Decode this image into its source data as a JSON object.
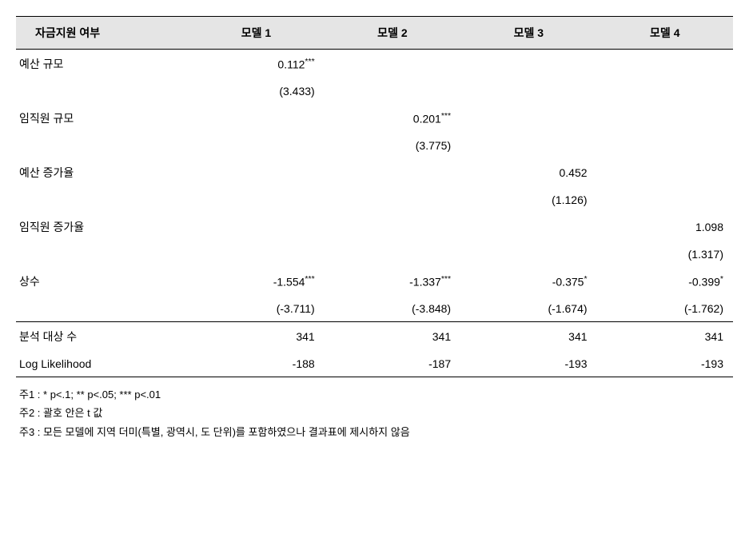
{
  "table": {
    "headers": [
      "자금지원 여부",
      "모델 1",
      "모델 2",
      "모델 3",
      "모델 4"
    ],
    "rows": [
      {
        "label": "예산 규모",
        "cells": [
          "0.112***",
          "",
          "",
          ""
        ]
      },
      {
        "label": "",
        "cells": [
          "(3.433)",
          "",
          "",
          ""
        ]
      },
      {
        "label": "임직원 규모",
        "cells": [
          "",
          "0.201***",
          "",
          ""
        ]
      },
      {
        "label": "",
        "cells": [
          "",
          "(3.775)",
          "",
          ""
        ]
      },
      {
        "label": "예산 증가율",
        "cells": [
          "",
          "",
          "0.452",
          ""
        ]
      },
      {
        "label": "",
        "cells": [
          "",
          "",
          "(1.126)",
          ""
        ]
      },
      {
        "label": "임직원 증가율",
        "cells": [
          "",
          "",
          "",
          "1.098"
        ]
      },
      {
        "label": "",
        "cells": [
          "",
          "",
          "",
          "(1.317)"
        ]
      },
      {
        "label": "상수",
        "cells": [
          "-1.554***",
          "-1.337***",
          "-0.375*",
          "-0.399*"
        ]
      },
      {
        "label": "",
        "cells": [
          "(-3.711)",
          "(-3.848)",
          "(-1.674)",
          "(-1.762)"
        ],
        "section_border": true
      },
      {
        "label": "분석 대상 수",
        "cells": [
          "341",
          "341",
          "341",
          "341"
        ]
      },
      {
        "label": "Log Likelihood",
        "cells": [
          "-188",
          "-187",
          "-193",
          "-193"
        ],
        "bottom_border": true
      }
    ]
  },
  "notes": [
    "주1 : * p<.1; ** p<.05; *** p<.01",
    "주2 : 괄호 안은 t 값",
    "주3 : 모든 모델에 지역 더미(특별, 광역시, 도 단위)를 포함하였으나 결과표에 제시하지 않음"
  ]
}
